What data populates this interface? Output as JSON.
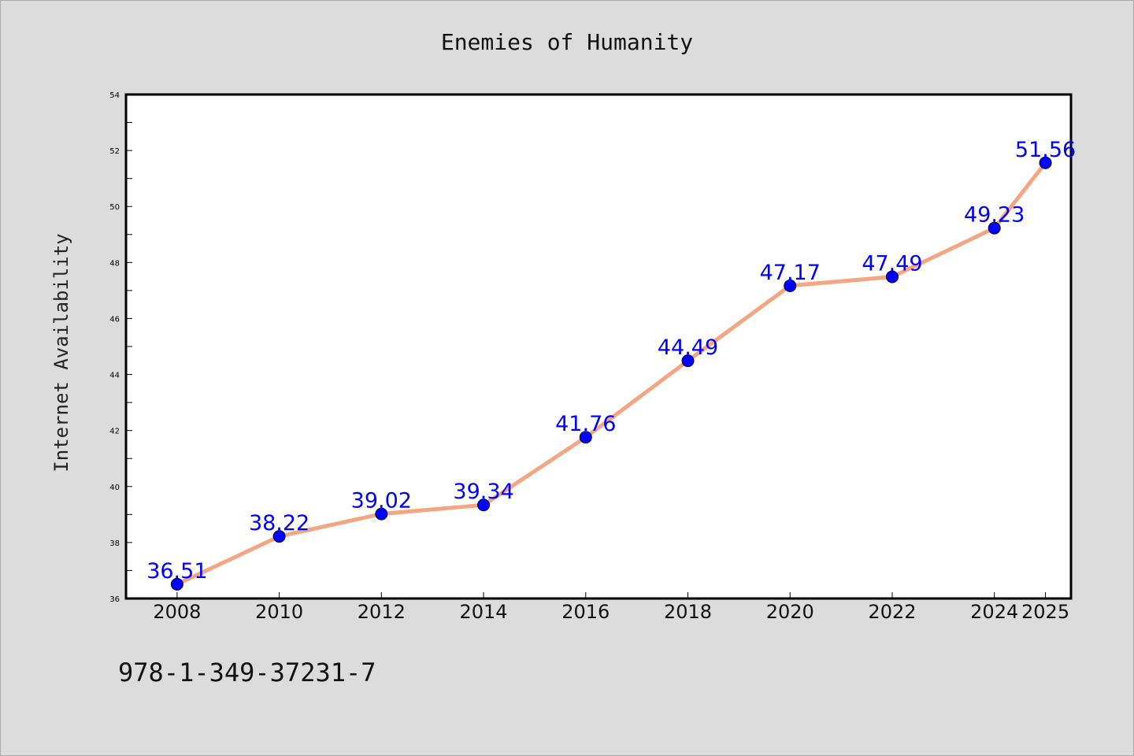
{
  "chart_data": {
    "type": "line",
    "title": "Enemies of Humanity",
    "xlabel": "",
    "ylabel": "Internet Availability",
    "categories": [
      "2008",
      "2010",
      "2012",
      "2014",
      "2016",
      "2018",
      "2020",
      "2022",
      "2024",
      "2025"
    ],
    "series": [
      {
        "values": [
          36.51,
          38.22,
          39.02,
          39.34,
          41.76,
          44.49,
          47.17,
          47.49,
          49.23,
          51.56
        ]
      }
    ],
    "data_labels": [
      "36.51",
      "38.22",
      "39.02",
      "39.34",
      "41.76",
      "44.49",
      "47.17",
      "47.49",
      "49.23",
      "51.56"
    ],
    "ylim": [
      36,
      54
    ],
    "yticks": [
      36,
      38,
      40,
      42,
      44,
      46,
      48,
      50,
      52,
      54
    ],
    "grid": false,
    "legend": "none",
    "line_color": "#f4a582",
    "marker_color": "#0000ff",
    "label_color": "#0000ff",
    "background_color": "#dcdcdc",
    "plot_background_color": "#ffffff"
  },
  "footer": {
    "isbn": "978-1-349-37231-7"
  }
}
